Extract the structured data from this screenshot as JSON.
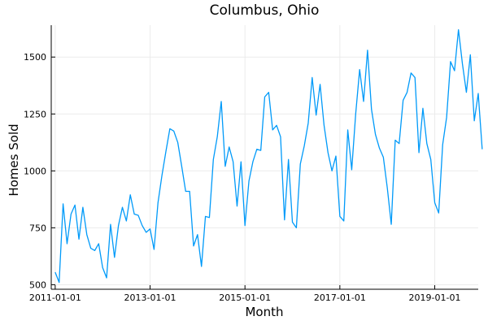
{
  "chart_data": {
    "type": "line",
    "title": "Columbus, Ohio",
    "xlabel": "Month",
    "ylabel": "Homes Sold",
    "x_start": "2011-01",
    "x_frequency": "monthly",
    "xlim": [
      "2010-12",
      "2019-12"
    ],
    "ylim": [
      480,
      1640
    ],
    "xticks": [
      "2011-01-01",
      "2013-01-01",
      "2015-01-01",
      "2017-01-01",
      "2019-01-01"
    ],
    "yticks": [
      500,
      750,
      1000,
      1250,
      1500
    ],
    "grid": true,
    "legend": "none",
    "series": [
      {
        "color": "#009af9",
        "values": [
          555,
          510,
          855,
          680,
          810,
          850,
          700,
          840,
          720,
          660,
          650,
          680,
          575,
          530,
          765,
          620,
          760,
          840,
          780,
          895,
          810,
          805,
          760,
          730,
          745,
          655,
          860,
          980,
          1085,
          1185,
          1175,
          1125,
          1020,
          910,
          910,
          670,
          720,
          580,
          800,
          795,
          1050,
          1150,
          1305,
          1020,
          1105,
          1040,
          845,
          1040,
          760,
          955,
          1040,
          1095,
          1090,
          1325,
          1345,
          1180,
          1200,
          1150,
          785,
          1050,
          775,
          750,
          1030,
          1110,
          1210,
          1410,
          1245,
          1380,
          1200,
          1080,
          1000,
          1065,
          800,
          780,
          1180,
          1005,
          1250,
          1445,
          1305,
          1530,
          1270,
          1160,
          1100,
          1060,
          925,
          765,
          1135,
          1120,
          1310,
          1345,
          1430,
          1410,
          1080,
          1275,
          1120,
          1050,
          860,
          815,
          1115,
          1235,
          1480,
          1440,
          1620,
          1470,
          1345,
          1510,
          1220,
          1340,
          1095
        ]
      }
    ]
  }
}
